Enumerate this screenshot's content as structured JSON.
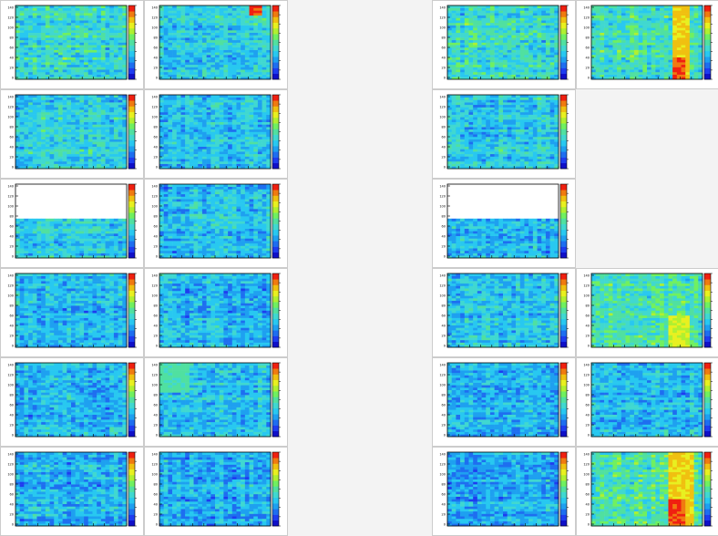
{
  "canvas": {
    "background": "#f3f3f3",
    "frame_color": "#cccccc"
  },
  "palette": [
    "#1010c8",
    "#1e3cf0",
    "#1e6ef0",
    "#1ea0f0",
    "#28c8f0",
    "#40d8d0",
    "#50e0a0",
    "#70f060",
    "#b0f030",
    "#e8f020",
    "#f0c010",
    "#f07a10",
    "#f02010"
  ],
  "chart_data": {
    "type": "heatmap",
    "grid_rows": 6,
    "grid_cols": 5,
    "y_tick_labels": [
      "0",
      "20",
      "40",
      "60",
      "80",
      "100",
      "120",
      "140"
    ],
    "nx": 26,
    "ny": 30,
    "panels": [
      {
        "id": "r1c1",
        "row": 0,
        "col": 0,
        "base": 5.0,
        "spread": 1.6,
        "seed": 11
      },
      {
        "id": "r1c2",
        "row": 0,
        "col": 1,
        "base": 4.2,
        "spread": 1.4,
        "seed": 12,
        "hot_patch": {
          "x": [
            21,
            23
          ],
          "y": [
            26,
            29
          ],
          "level": 12
        }
      },
      {
        "id": "r1c4",
        "row": 0,
        "col": 3,
        "base": 5.0,
        "spread": 1.6,
        "seed": 14
      },
      {
        "id": "r1c5",
        "row": 0,
        "col": 4,
        "base": 5.4,
        "spread": 1.5,
        "seed": 15,
        "hot_patch": {
          "x": [
            19,
            22
          ],
          "y": [
            0,
            29
          ],
          "level": 10
        },
        "hot_patch2": {
          "x": [
            19,
            21
          ],
          "y": [
            0,
            8
          ],
          "level": 12
        }
      },
      {
        "id": "r2c1",
        "row": 1,
        "col": 0,
        "base": 4.4,
        "spread": 1.4,
        "seed": 21
      },
      {
        "id": "r2c2",
        "row": 1,
        "col": 1,
        "base": 4.0,
        "spread": 1.3,
        "seed": 22
      },
      {
        "id": "r2c4",
        "row": 1,
        "col": 3,
        "base": 4.2,
        "spread": 1.4,
        "seed": 24
      },
      {
        "id": "r3c1",
        "row": 2,
        "col": 0,
        "base": 4.4,
        "spread": 1.3,
        "seed": 31,
        "fill_fraction": 0.52
      },
      {
        "id": "r3c2",
        "row": 2,
        "col": 1,
        "base": 3.9,
        "spread": 1.3,
        "seed": 32
      },
      {
        "id": "r3c4",
        "row": 2,
        "col": 3,
        "base": 3.9,
        "spread": 1.3,
        "seed": 34,
        "fill_fraction": 0.52
      },
      {
        "id": "r4c1",
        "row": 3,
        "col": 0,
        "base": 3.6,
        "spread": 1.3,
        "seed": 41
      },
      {
        "id": "r4c2",
        "row": 3,
        "col": 1,
        "base": 3.5,
        "spread": 1.3,
        "seed": 42
      },
      {
        "id": "r4c4",
        "row": 3,
        "col": 3,
        "base": 3.9,
        "spread": 1.4,
        "seed": 44
      },
      {
        "id": "r4c5",
        "row": 3,
        "col": 4,
        "base": 5.6,
        "spread": 1.5,
        "seed": 45,
        "hot_patch": {
          "x": [
            18,
            22
          ],
          "y": [
            0,
            12
          ],
          "level": 9
        }
      },
      {
        "id": "r5c1",
        "row": 4,
        "col": 0,
        "base": 3.6,
        "spread": 1.3,
        "seed": 51
      },
      {
        "id": "r5c2",
        "row": 4,
        "col": 1,
        "base": 3.9,
        "spread": 1.3,
        "seed": 52,
        "hot_patch": {
          "x": [
            0,
            6
          ],
          "y": [
            18,
            29
          ],
          "level": 6
        }
      },
      {
        "id": "r5c4",
        "row": 4,
        "col": 3,
        "base": 3.3,
        "spread": 1.3,
        "seed": 54
      },
      {
        "id": "r5c5",
        "row": 4,
        "col": 4,
        "base": 3.8,
        "spread": 1.3,
        "seed": 55
      },
      {
        "id": "r6c1",
        "row": 5,
        "col": 0,
        "base": 3.3,
        "spread": 1.3,
        "seed": 61
      },
      {
        "id": "r6c2",
        "row": 5,
        "col": 1,
        "base": 3.4,
        "spread": 1.3,
        "seed": 62
      },
      {
        "id": "r6c4",
        "row": 5,
        "col": 3,
        "base": 3.3,
        "spread": 1.3,
        "seed": 64
      },
      {
        "id": "r6c5",
        "row": 5,
        "col": 4,
        "base": 5.8,
        "spread": 1.6,
        "seed": 65,
        "hot_patch": {
          "x": [
            18,
            23
          ],
          "y": [
            0,
            29
          ],
          "level": 10
        },
        "hot_patch2": {
          "x": [
            18,
            21
          ],
          "y": [
            0,
            10
          ],
          "level": 12
        }
      }
    ]
  }
}
